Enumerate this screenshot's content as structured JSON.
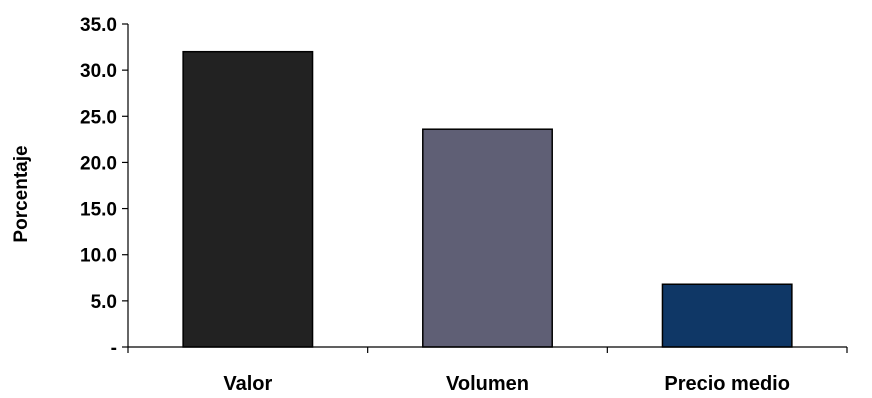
{
  "chart_data": {
    "type": "bar",
    "title": "",
    "xlabel": "",
    "ylabel": "Porcentaje",
    "categories": [
      "Valor",
      "Volumen",
      "Precio medio"
    ],
    "values": [
      32.0,
      23.6,
      6.8
    ],
    "colors": [
      "#222222",
      "#5f5f75",
      "#0f3766"
    ],
    "ylim": [
      0,
      35
    ],
    "yticks": [
      0,
      5,
      10,
      15,
      20,
      25,
      30,
      35
    ],
    "ytick_labels": [
      "-",
      "5.0",
      "10.0",
      "15.0",
      "20.0",
      "25.0",
      "30.0",
      "35.0"
    ],
    "grid": false,
    "legend": "none"
  }
}
